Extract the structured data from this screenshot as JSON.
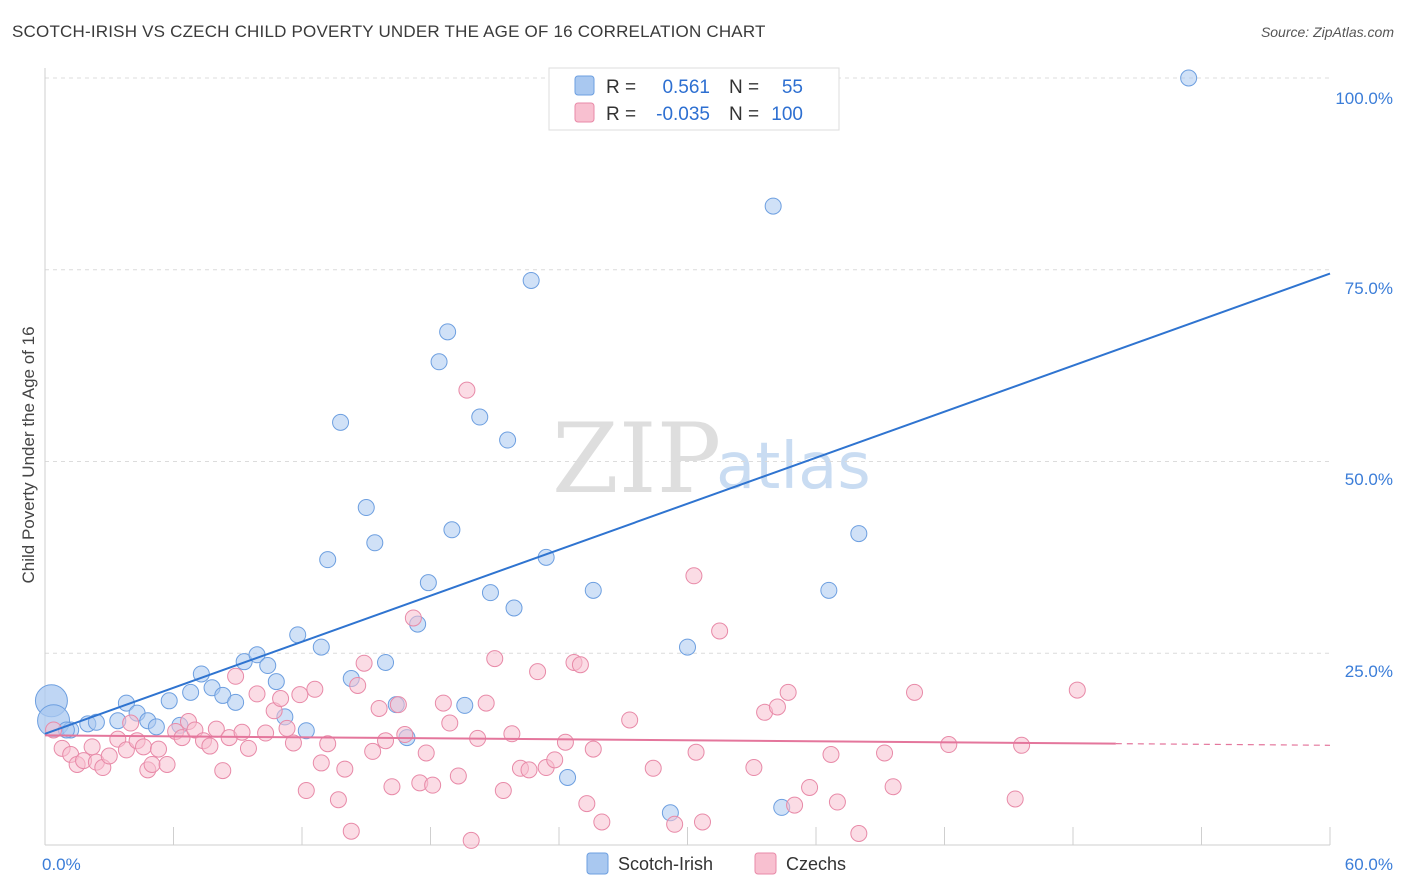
{
  "title": "SCOTCH-IRISH VS CZECH CHILD POVERTY UNDER THE AGE OF 16 CORRELATION CHART",
  "source": "Source: ZipAtlas.com",
  "watermark": {
    "zip": "ZIP",
    "atlas": "atlas"
  },
  "legend": {
    "r_label": "R =",
    "n_label": "N =",
    "rows": [
      {
        "r": "0.561",
        "n": "55",
        "color": "#a9c8f0",
        "stroke": "#6d9fe0"
      },
      {
        "r": "-0.035",
        "n": "100",
        "color": "#f8c0d0",
        "stroke": "#e88aa8"
      }
    ]
  },
  "bottom_legend": [
    {
      "label": "Scotch-Irish",
      "color": "#a9c8f0",
      "stroke": "#6d9fe0"
    },
    {
      "label": "Czechs",
      "color": "#f8c0d0",
      "stroke": "#e88aa8"
    }
  ],
  "chart_data": {
    "type": "scatter",
    "title": "SCOTCH-IRISH VS CZECH CHILD POVERTY UNDER THE AGE OF 16 CORRELATION CHART",
    "xlabel": "",
    "ylabel": "Child Poverty Under the Age of 16",
    "xlim": [
      0,
      60
    ],
    "ylim": [
      0,
      100
    ],
    "x_tick_labels": [
      "0.0%",
      "60.0%"
    ],
    "y_tick_labels": [
      "25.0%",
      "50.0%",
      "75.0%",
      "100.0%"
    ],
    "y_ticks": [
      25,
      50,
      75,
      100
    ],
    "grid": true,
    "legend_position": "top-center",
    "series": [
      {
        "name": "Scotch-Irish",
        "color": "#a9c8f0",
        "stroke": "#6d9fe0",
        "trend": {
          "x": [
            0,
            60
          ],
          "y": [
            14.5,
            74.5
          ],
          "color": "#2f74d0",
          "dashed_from": null
        },
        "points": [
          [
            0.3,
            18.8
          ],
          [
            0.4,
            16.2
          ],
          [
            1.2,
            15.0
          ],
          [
            2.0,
            15.8
          ],
          [
            3.4,
            16.2
          ],
          [
            3.8,
            18.5
          ],
          [
            4.3,
            17.2
          ],
          [
            4.8,
            16.2
          ],
          [
            5.2,
            15.4
          ],
          [
            5.8,
            18.8
          ],
          [
            6.3,
            15.6
          ],
          [
            6.8,
            19.9
          ],
          [
            7.3,
            22.3
          ],
          [
            7.8,
            20.5
          ],
          [
            8.3,
            19.5
          ],
          [
            8.9,
            18.6
          ],
          [
            9.3,
            23.9
          ],
          [
            9.9,
            24.8
          ],
          [
            10.4,
            23.4
          ],
          [
            10.8,
            21.3
          ],
          [
            11.2,
            16.7
          ],
          [
            11.8,
            27.4
          ],
          [
            12.2,
            14.9
          ],
          [
            12.9,
            25.8
          ],
          [
            13.2,
            37.2
          ],
          [
            13.8,
            55.1
          ],
          [
            14.3,
            21.7
          ],
          [
            15.0,
            44.0
          ],
          [
            15.4,
            39.4
          ],
          [
            15.9,
            23.8
          ],
          [
            16.4,
            18.3
          ],
          [
            16.9,
            14.0
          ],
          [
            17.4,
            28.8
          ],
          [
            17.9,
            34.2
          ],
          [
            18.4,
            63.0
          ],
          [
            18.8,
            66.9
          ],
          [
            19.0,
            41.1
          ],
          [
            19.6,
            18.2
          ],
          [
            20.3,
            55.8
          ],
          [
            20.8,
            32.9
          ],
          [
            21.6,
            52.8
          ],
          [
            21.9,
            30.9
          ],
          [
            22.7,
            73.6
          ],
          [
            23.4,
            37.5
          ],
          [
            24.4,
            8.8
          ],
          [
            25.6,
            33.2
          ],
          [
            29.2,
            4.2
          ],
          [
            30.0,
            25.8
          ],
          [
            34.0,
            83.3
          ],
          [
            34.4,
            4.9
          ],
          [
            36.6,
            33.2
          ],
          [
            38.0,
            40.6
          ],
          [
            53.4,
            100.0
          ],
          [
            1.0,
            15.0
          ],
          [
            2.4,
            16.0
          ]
        ]
      },
      {
        "name": "Czechs",
        "color": "#f8c0d0",
        "stroke": "#e88aa8",
        "trend": {
          "x": [
            0,
            60
          ],
          "y": [
            14.3,
            13.0
          ],
          "color": "#e4769c",
          "dashed_from": 50
        },
        "points": [
          [
            0.4,
            15.0
          ],
          [
            0.8,
            12.6
          ],
          [
            1.2,
            11.8
          ],
          [
            1.5,
            10.5
          ],
          [
            1.8,
            11.0
          ],
          [
            2.2,
            12.8
          ],
          [
            2.4,
            10.8
          ],
          [
            2.7,
            10.1
          ],
          [
            3.0,
            11.6
          ],
          [
            3.4,
            13.8
          ],
          [
            3.8,
            12.4
          ],
          [
            4.0,
            15.9
          ],
          [
            4.3,
            13.6
          ],
          [
            4.6,
            12.8
          ],
          [
            4.8,
            9.8
          ],
          [
            5.0,
            10.5
          ],
          [
            5.3,
            12.5
          ],
          [
            5.7,
            10.5
          ],
          [
            6.1,
            14.8
          ],
          [
            6.4,
            14.0
          ],
          [
            6.7,
            16.1
          ],
          [
            7.0,
            15.0
          ],
          [
            7.4,
            13.6
          ],
          [
            7.7,
            12.9
          ],
          [
            8.0,
            15.1
          ],
          [
            8.3,
            9.7
          ],
          [
            8.6,
            14.0
          ],
          [
            8.9,
            22.0
          ],
          [
            9.2,
            14.7
          ],
          [
            9.5,
            12.6
          ],
          [
            9.9,
            19.7
          ],
          [
            10.3,
            14.6
          ],
          [
            10.7,
            17.5
          ],
          [
            11.0,
            19.1
          ],
          [
            11.3,
            15.2
          ],
          [
            11.6,
            13.3
          ],
          [
            11.9,
            19.6
          ],
          [
            12.2,
            7.1
          ],
          [
            12.6,
            20.3
          ],
          [
            12.9,
            10.7
          ],
          [
            13.2,
            13.2
          ],
          [
            13.7,
            5.9
          ],
          [
            14.0,
            9.9
          ],
          [
            14.3,
            1.8
          ],
          [
            14.6,
            20.8
          ],
          [
            14.9,
            23.7
          ],
          [
            15.3,
            12.2
          ],
          [
            15.6,
            17.8
          ],
          [
            15.9,
            13.6
          ],
          [
            16.2,
            7.6
          ],
          [
            16.5,
            18.3
          ],
          [
            16.8,
            14.4
          ],
          [
            17.2,
            29.6
          ],
          [
            17.5,
            8.1
          ],
          [
            17.8,
            12.0
          ],
          [
            18.1,
            7.8
          ],
          [
            18.6,
            18.5
          ],
          [
            18.9,
            15.9
          ],
          [
            19.3,
            9.0
          ],
          [
            19.7,
            59.3
          ],
          [
            19.9,
            0.6
          ],
          [
            20.2,
            13.9
          ],
          [
            20.6,
            18.5
          ],
          [
            21.0,
            24.3
          ],
          [
            21.4,
            7.1
          ],
          [
            21.8,
            14.5
          ],
          [
            22.2,
            10.0
          ],
          [
            22.6,
            9.8
          ],
          [
            23.0,
            22.6
          ],
          [
            23.4,
            10.1
          ],
          [
            23.8,
            11.1
          ],
          [
            24.3,
            13.4
          ],
          [
            24.7,
            23.8
          ],
          [
            25.0,
            23.5
          ],
          [
            25.3,
            5.4
          ],
          [
            25.6,
            12.5
          ],
          [
            26.0,
            3.0
          ],
          [
            27.3,
            16.3
          ],
          [
            28.4,
            10.0
          ],
          [
            29.4,
            2.7
          ],
          [
            30.3,
            35.1
          ],
          [
            30.4,
            12.1
          ],
          [
            30.7,
            3.0
          ],
          [
            31.5,
            27.9
          ],
          [
            33.1,
            10.1
          ],
          [
            33.6,
            17.3
          ],
          [
            34.2,
            18.0
          ],
          [
            34.7,
            19.9
          ],
          [
            35.0,
            5.2
          ],
          [
            35.7,
            7.5
          ],
          [
            36.7,
            11.8
          ],
          [
            37.0,
            5.6
          ],
          [
            38.0,
            1.5
          ],
          [
            39.2,
            12.0
          ],
          [
            39.6,
            7.6
          ],
          [
            40.6,
            19.9
          ],
          [
            42.2,
            13.1
          ],
          [
            45.3,
            6.0
          ],
          [
            45.6,
            13.0
          ],
          [
            48.2,
            20.2
          ]
        ]
      }
    ]
  }
}
